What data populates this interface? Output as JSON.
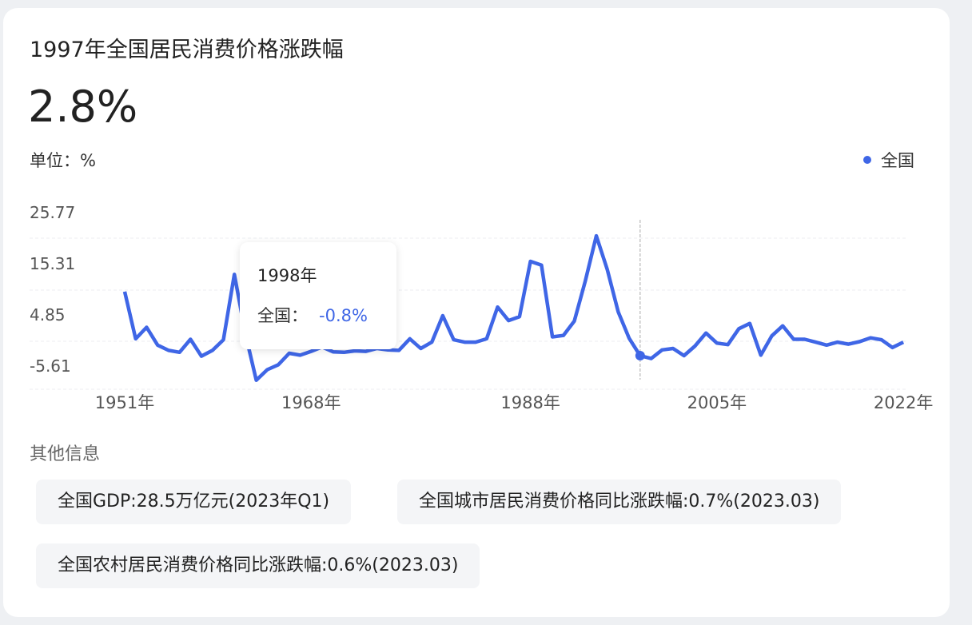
{
  "title": "1997年全国居民消费价格涨跌幅",
  "headline_value": "2.8%",
  "unit_label": "单位：%",
  "legend": {
    "label": "全国",
    "color": "#3f66e6"
  },
  "tooltip": {
    "year": "1998年",
    "series": "全国：",
    "value": "-0.8%"
  },
  "other_info_label": "其他信息",
  "info_chips": [
    "全国GDP:28.5万亿元(2023年Q1)",
    "全国城市居民消费价格同比涨跌幅:0.7%(2023.03)",
    "全国农村居民消费价格同比涨跌幅:0.6%(2023.03)"
  ],
  "chart_data": {
    "type": "line",
    "title": "",
    "xlabel": "",
    "ylabel": "%",
    "y_ticks": [
      "25.77",
      "15.31",
      "4.85",
      "-5.61"
    ],
    "x_ticks": [
      "1951年",
      "1968年",
      "1988年",
      "2005年",
      "2022年"
    ],
    "x_tick_years": [
      1951,
      1968,
      1988,
      2005,
      2022
    ],
    "highlight_year": 1998,
    "grid": true,
    "legend_position": "top-right",
    "series": [
      {
        "name": "全国",
        "color": "#3f66e6",
        "x_start": 1951,
        "values": [
          12.5,
          2.7,
          5.1,
          1.4,
          0.3,
          -0.1,
          2.6,
          -0.9,
          0.3,
          2.5,
          16.1,
          3.8,
          -5.9,
          -3.7,
          -2.7,
          -0.3,
          -0.7,
          0.1,
          1.0,
          0.0,
          -0.1,
          0.2,
          0.1,
          0.7,
          0.4,
          0.3,
          2.7,
          0.7,
          2.0,
          7.5,
          2.5,
          2.0,
          2.0,
          2.7,
          9.3,
          6.5,
          7.3,
          18.8,
          18.0,
          3.1,
          3.4,
          6.4,
          14.7,
          24.1,
          17.1,
          8.3,
          2.8,
          -0.8,
          -1.4,
          0.4,
          0.7,
          -0.8,
          1.2,
          3.9,
          1.8,
          1.5,
          4.8,
          5.9,
          -0.7,
          3.3,
          5.4,
          2.6,
          2.6,
          2.0,
          1.4,
          2.0,
          1.6,
          2.1,
          2.9,
          2.5,
          0.9,
          2.0
        ]
      }
    ]
  }
}
